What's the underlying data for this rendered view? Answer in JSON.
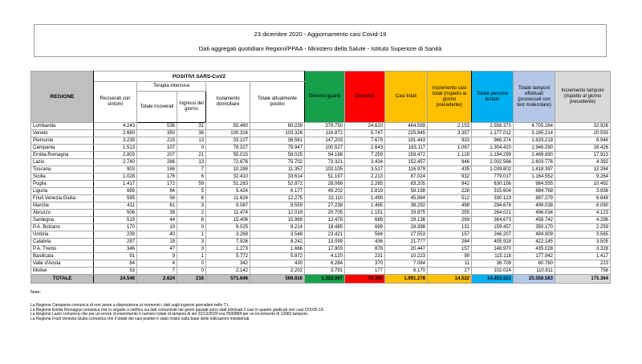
{
  "header": {
    "line1": "23 dicembre 2020 - Aggiornamento casi Covid-19",
    "line2": "Dati aggregati quotidiani Regioni/PPAA - Ministero della Salute - Istituto Superiore di Sanità"
  },
  "table": {
    "group_headers": {
      "regione": "REGIONE",
      "positivi": "POSITIVI SARS-CoV2",
      "terapia_intensiva": "Terapia intensiva"
    },
    "columns": [
      "Ricoverati con sintomi",
      "Totale ricoverati",
      "Ingressi del giorno",
      "Isolamento domiciliare",
      "Totale attualmente positivi",
      "Dimessi guariti",
      "Deceduti",
      "Casi totali",
      "Incremento casi totali (rispetto al giorno precedente)",
      "Totale persone testate",
      "Totale tamponi effettuati (processati con test molecolare)",
      "Incremento tamponi (rispetto al giorno precedente)"
    ],
    "rows": [
      {
        "regione": "Lombardia",
        "values": [
          "4.243",
          "536",
          "31",
          "55.460",
          "60.239",
          "379.750",
          "24.610",
          "464.599",
          "2.153",
          "2.556.373",
          "4.705.264",
          "32.926"
        ]
      },
      {
        "regione": "Veneto",
        "values": [
          "2.660",
          "350",
          "36",
          "100.316",
          "103.326",
          "116.872",
          "5.747",
          "225.945",
          "3.357",
          "1.177.012",
          "3.165.214",
          "20.593"
        ]
      },
      {
        "regione": "Piemonte",
        "values": [
          "3.239",
          "215",
          "13",
          "33.107",
          "36.561",
          "147.203",
          "7.679",
          "191.443",
          "933",
          "966.374",
          "1.633.219",
          "8.946"
        ]
      },
      {
        "regione": "Campania",
        "values": [
          "1.513",
          "107",
          "0",
          "78.327",
          "79.947",
          "100.527",
          "2.643",
          "183.117",
          "1.067",
          "1.304.420",
          "1.946.290",
          "18.426"
        ]
      },
      {
        "regione": "Emilia-Romagna",
        "values": [
          "2.803",
          "207",
          "21",
          "55.015",
          "58.025",
          "94.188",
          "7.259",
          "159.472",
          "1.129",
          "1.194.299",
          "2.469.690",
          "17.913"
        ]
      },
      {
        "regione": "Lazio",
        "values": [
          "2.740",
          "286",
          "13",
          "72.676",
          "75.702",
          "73.321",
          "3.434",
          "152.457",
          "946",
          "2.002.566",
          "2.603.776",
          "4.392"
        ]
      },
      {
        "regione": "Toscana",
        "values": [
          "903",
          "166",
          "7",
          "10.288",
          "11.357",
          "102.105",
          "3.517",
          "116.979",
          "435",
          "1.039.802",
          "1.818.397",
          "12.264"
        ]
      },
      {
        "regione": "Sicilia",
        "values": [
          "1.028",
          "176",
          "6",
          "32.410",
          "33.614",
          "51.197",
          "2.213",
          "87.024",
          "932",
          "779.017",
          "1.164.552",
          "9.264"
        ]
      },
      {
        "regione": "Puglia",
        "values": [
          "1.417",
          "172",
          "59",
          "51.283",
          "52.872",
          "28.068",
          "2.265",
          "83.205",
          "942",
          "630.156",
          "984.555",
          "10.492"
        ]
      },
      {
        "regione": "Liguria",
        "values": [
          "689",
          "64",
          "5",
          "5.424",
          "6.177",
          "49.202",
          "2.819",
          "58.198",
          "228",
          "315.604",
          "684.768",
          "3.936"
        ]
      },
      {
        "regione": "Friuli Venezia Giulia",
        "values": [
          "595",
          "56",
          "6",
          "11.624",
          "12.275",
          "32.110",
          "1.499",
          "45.884",
          "512",
          "330.123",
          "887.279",
          "6.648"
        ]
      },
      {
        "regione": "Marche",
        "values": [
          "411",
          "61",
          "3",
          "9.087",
          "9.559",
          "27.238",
          "1.495",
          "38.292",
          "498",
          "294.678",
          "499.038",
          "6.090"
        ]
      },
      {
        "regione": "Abruzzo",
        "values": [
          "506",
          "39",
          "2",
          "11.474",
          "12.019",
          "20.705",
          "1.151",
          "33.875",
          "255",
          "264.021",
          "496.034",
          "4.123"
        ]
      },
      {
        "regione": "Sardegna",
        "values": [
          "519",
          "44",
          "6",
          "15.406",
          "15.969",
          "12.478",
          "689",
          "29.136",
          "269",
          "384.673",
          "458.742",
          "4.296"
        ]
      },
      {
        "regione": "P.A. Bolzano",
        "values": [
          "170",
          "19",
          "0",
          "9.025",
          "9.214",
          "18.485",
          "699",
          "28.398",
          "131",
          "159.457",
          "350.170",
          "2.259"
        ]
      },
      {
        "regione": "Umbria",
        "values": [
          "239",
          "40",
          "1",
          "3.269",
          "3.548",
          "23.421",
          "584",
          "27.553",
          "157",
          "246.207",
          "484.909",
          "3.565"
        ]
      },
      {
        "regione": "Calabria",
        "values": [
          "297",
          "19",
          "3",
          "7.926",
          "8.242",
          "13.099",
          "436",
          "21.777",
          "284",
          "405.918",
          "422.145",
          "3.505"
        ]
      },
      {
        "regione": "P.A. Trento",
        "values": [
          "346",
          "47",
          "3",
          "1.273",
          "1.666",
          "17.903",
          "878",
          "20.447",
          "157",
          "148.970",
          "435.028",
          "3.328"
        ]
      },
      {
        "regione": "Basilicata",
        "values": [
          "91",
          "9",
          "1",
          "5.772",
          "5.872",
          "4.120",
          "231",
          "10.223",
          "99",
          "115.118",
          "177.942",
          "1.417"
        ]
      },
      {
        "regione": "Valle d'Aosta",
        "values": [
          "84",
          "4",
          "0",
          "342",
          "430",
          "6.284",
          "370",
          "7.084",
          "11",
          "36.709",
          "60.760",
          "223"
        ]
      },
      {
        "regione": "Molise",
        "values": [
          "53",
          "7",
          "0",
          "2.142",
          "2.202",
          "3.791",
          "177",
          "6.170",
          "27",
          "102.024",
          "110.811",
          "758"
        ]
      }
    ],
    "totale": {
      "regione": "TOTALE",
      "values": [
        "24.546",
        "2.624",
        "216",
        "571.646",
        "598.816",
        "1.322.067",
        "70.395",
        "1.991.278",
        "14.522",
        "14.453.521",
        "25.558.583",
        "175.364"
      ]
    }
  },
  "notes": {
    "title": "Note:",
    "lines": [
      "La Regione Campania comunica di non avere a disposizione al momento i dati sugli ingressi giornalieri nelle T.I..",
      "La Regione Emilia Romagna comunica che in seguito a verifica sui dati comunicati nei giorni passati sono stati eliminati 2 casi in quanto giudicati non casi COVID-19.",
      "La Regione Lazio comunica che per un errore di inserimento il numero totale di tamponi di ieri 22/12/2020 era 2590884 per un incremento di 12982 tamponi.",
      "La Regione Friuli Venezia Giulia comunica che il totale dei casi positivi è stato rivisto sulla base delle indicazioni ministeriali."
    ]
  },
  "colors": {
    "header_gray": "#BFBFBF",
    "green": "#17A04B",
    "red": "#FE0000",
    "yellow": "#FFC000",
    "cyan": "#00B0F0",
    "lavender": "#B4C7E7",
    "light_gray": "#D9D9D9"
  }
}
